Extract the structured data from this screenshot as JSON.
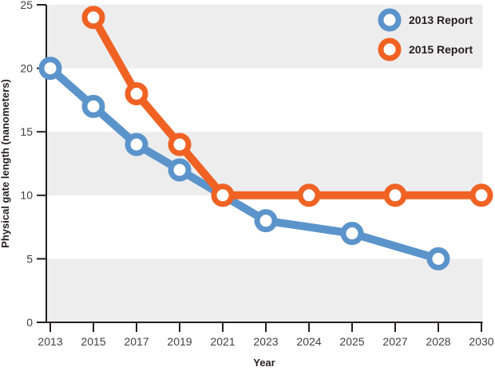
{
  "chart_data": {
    "type": "line",
    "title": "",
    "xlabel": "Year",
    "ylabel": "Physical gate length (nanometers)",
    "x_ticks": [
      "2013",
      "2015",
      "2017",
      "2019",
      "2021",
      "2023",
      "2024",
      "2025",
      "2027",
      "2028",
      "2030"
    ],
    "x_axis_note": "categorical ticks with equal spacing (non-uniform year intervals)",
    "y_ticks": [
      0,
      5,
      10,
      15,
      20,
      25
    ],
    "ylim": [
      0,
      25
    ],
    "grid": "off",
    "background_bands": {
      "color": "#ededee",
      "ranges": [
        [
          0,
          5
        ],
        [
          10,
          15
        ],
        [
          20,
          25
        ]
      ]
    },
    "axis_color": "#231f20",
    "legend": {
      "position": "top-right"
    },
    "series": [
      {
        "name": "2013 Report",
        "color": "#5b94cb",
        "points": [
          [
            "2013",
            20
          ],
          [
            "2015",
            17
          ],
          [
            "2017",
            14
          ],
          [
            "2019",
            12
          ],
          [
            "2021",
            10
          ],
          [
            "2023",
            8
          ],
          [
            "2025",
            7
          ],
          [
            "2028",
            5
          ]
        ]
      },
      {
        "name": "2015 Report",
        "color": "#f06223",
        "points": [
          [
            "2015",
            24
          ],
          [
            "2017",
            18
          ],
          [
            "2019",
            14
          ],
          [
            "2021",
            10
          ],
          [
            "2024",
            10
          ],
          [
            "2027",
            10
          ],
          [
            "2030",
            10
          ]
        ]
      }
    ]
  }
}
